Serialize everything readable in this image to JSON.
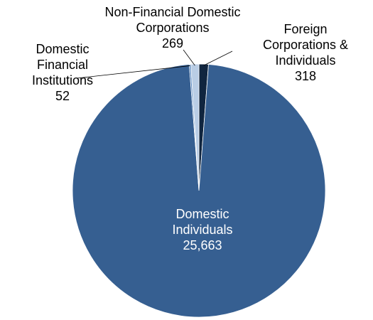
{
  "chart_data": {
    "type": "pie",
    "categories": [
      "Foreign Corporations & Individuals",
      "Domestic Individuals",
      "Domestic Financial Institutions",
      "Non-Financial Domestic Corporations"
    ],
    "values": [
      318,
      25663,
      52,
      269
    ],
    "value_labels": [
      "318",
      "25,663",
      "52",
      "269"
    ],
    "colors": [
      "#10253f",
      "#365f91",
      "#4f81bd",
      "#b9cde5"
    ]
  }
}
